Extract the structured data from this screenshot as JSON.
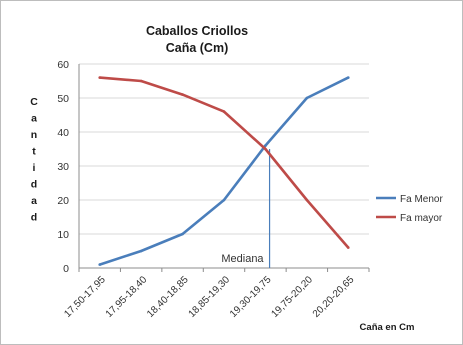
{
  "chart_data": {
    "type": "line",
    "title": [
      "Caballos Criollos",
      "Caña (Cm)"
    ],
    "ylabel": "Cantidad",
    "xlabel": "Caña en Cm",
    "categories": [
      "17,50-17,95",
      "17,95-18,40",
      "18,40-18,85",
      "18,85-19,30",
      "19,30-19,75",
      "19,75-20,20",
      "20,20-20,65"
    ],
    "ylim": [
      0,
      60
    ],
    "yticks": [
      0,
      10,
      20,
      30,
      40,
      50,
      60
    ],
    "grid": true,
    "legend_position": "right",
    "series": [
      {
        "name": "Fa Menor",
        "color": "#4a7ebb",
        "values": [
          1,
          5,
          10,
          20,
          36,
          50,
          56
        ]
      },
      {
        "name": "Fa mayor",
        "color": "#be4b48",
        "values": [
          56,
          55,
          51,
          46,
          35,
          20,
          6
        ]
      }
    ],
    "annotation": {
      "label": "Mediana",
      "x_category_index": 4.1,
      "color": "#4a7ebb"
    }
  }
}
